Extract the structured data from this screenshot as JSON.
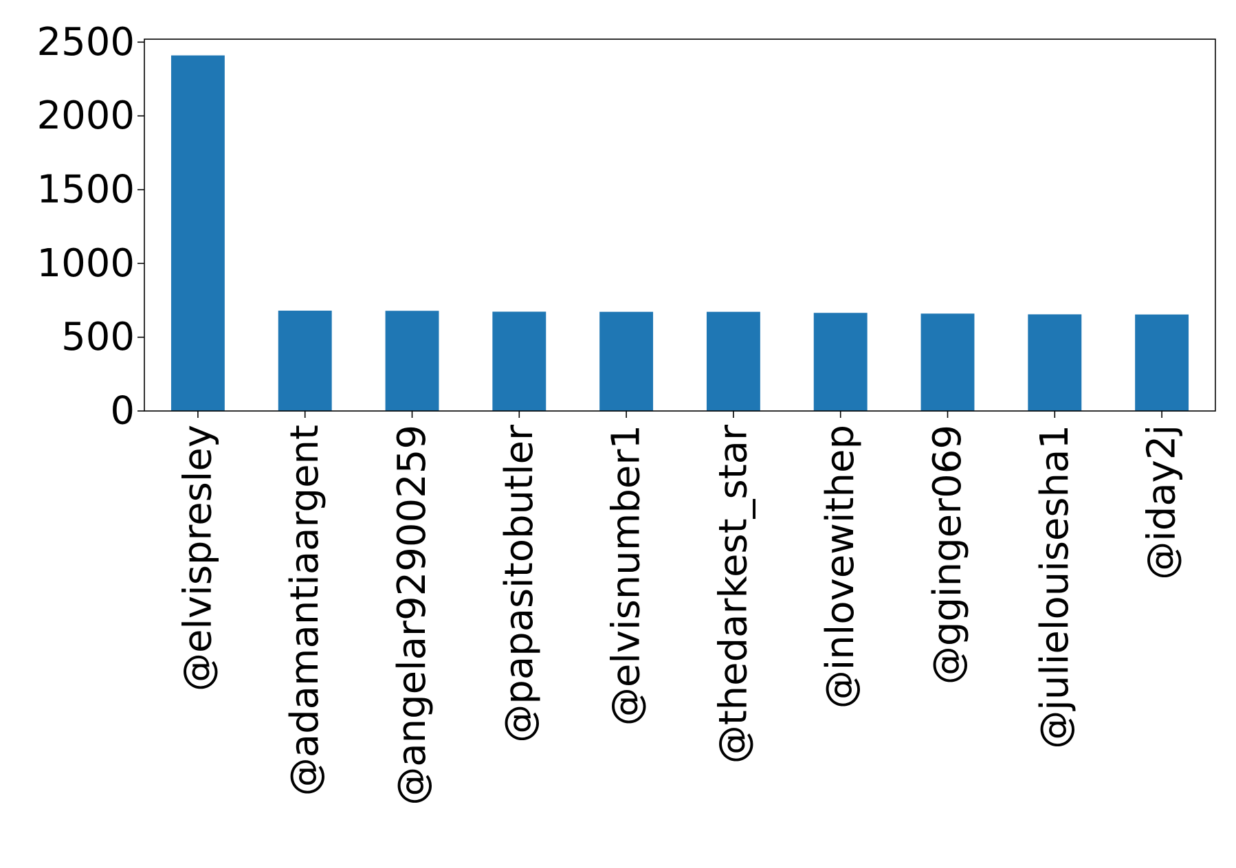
{
  "chart_data": {
    "type": "bar",
    "title": "",
    "xlabel": "",
    "ylabel": "",
    "categories": [
      "@elvispresley",
      "@adamantiaargent",
      "@angelar92900259",
      "@papasitobutler",
      "@elvisnumber1",
      "@thedarkest_star",
      "@inlovewithep",
      "@gginger069",
      "@julielouisesha1",
      "@iday2j"
    ],
    "values": [
      2410,
      680,
      679,
      673,
      672,
      672,
      665,
      660,
      655,
      654
    ],
    "ylim": [
      0,
      2520
    ],
    "yticks": [
      0,
      500,
      1000,
      1500,
      2000,
      2500
    ],
    "bar_color": "#1f77b4",
    "grid": false,
    "legend": "none"
  }
}
